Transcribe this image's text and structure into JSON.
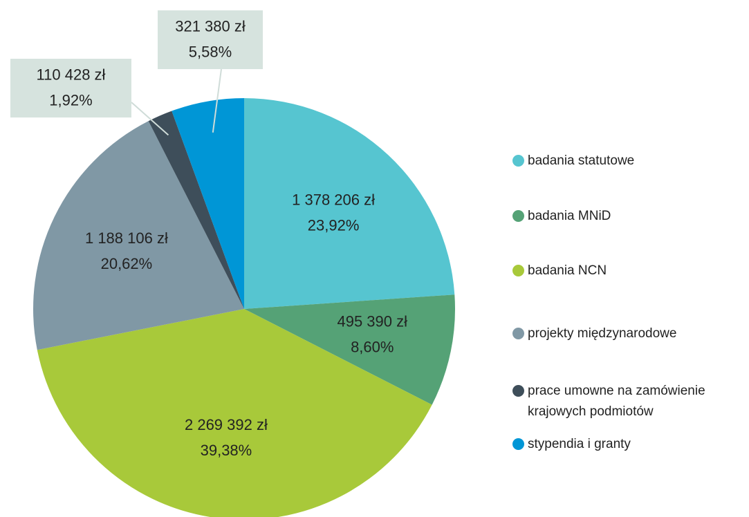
{
  "chart_data": {
    "type": "pie",
    "categories": [
      "badania statutowe",
      "badania MNiD",
      "badania NCN",
      "projekty międzynarodowe",
      "prace umowne na zamówienie krajowych podmiotów",
      "stypendia i granty"
    ],
    "values": [
      1378206,
      495390,
      2269392,
      1188106,
      110428,
      321380
    ],
    "value_labels": [
      "1 378 206 zł",
      "495 390 zł",
      "2 269 392 zł",
      "1 188 106 zł",
      "110 428 zł",
      "321 380 zł"
    ],
    "percents": [
      23.92,
      8.6,
      39.38,
      20.62,
      1.92,
      5.58
    ],
    "percent_labels": [
      "23,92%",
      "8,60%",
      "39,38%",
      "20,62%",
      "1,92%",
      "5,58%"
    ],
    "colors": [
      "#56c5d0",
      "#55a276",
      "#a8c93a",
      "#8098a5",
      "#3e4e5a",
      "#0096d6"
    ],
    "legend": "right"
  }
}
